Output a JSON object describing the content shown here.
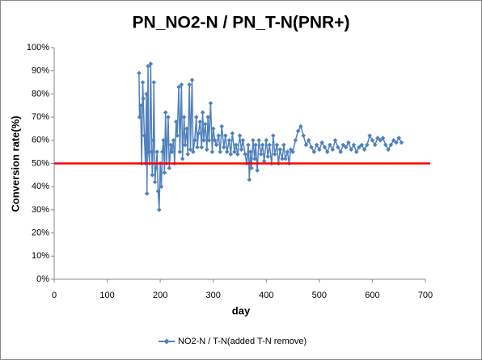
{
  "chart_data": {
    "type": "line",
    "title": "PN_NO2-N / PN_T-N(PNR+)",
    "x_label": "day",
    "y_label": "Conversion rate(%)",
    "xlim": [
      0,
      700
    ],
    "xticks": [
      0,
      100,
      200,
      300,
      400,
      500,
      600,
      700
    ],
    "ylim": [
      0,
      100
    ],
    "yticks": [
      {
        "value": 0,
        "label": "0%"
      },
      {
        "value": 10,
        "label": "10%"
      },
      {
        "value": 20,
        "label": "20%"
      },
      {
        "value": 30,
        "label": "30%"
      },
      {
        "value": 40,
        "label": "40%"
      },
      {
        "value": 50,
        "label": "50%"
      },
      {
        "value": 60,
        "label": "60%"
      },
      {
        "value": 70,
        "label": "70%"
      },
      {
        "value": 80,
        "label": "80%"
      },
      {
        "value": 90,
        "label": "90%"
      },
      {
        "value": 100,
        "label": "100%"
      }
    ],
    "grid": false,
    "legend": "bottom",
    "reference_line": {
      "value": 50,
      "color": "#ff0000"
    },
    "x": [
      160,
      161,
      163,
      165,
      167,
      168,
      170,
      172,
      174,
      175,
      177,
      178,
      180,
      182,
      184,
      185,
      187,
      188,
      190,
      192,
      194,
      196,
      198,
      200,
      202,
      204,
      206,
      208,
      210,
      212,
      215,
      217,
      220,
      222,
      225,
      227,
      230,
      232,
      235,
      237,
      240,
      242,
      245,
      247,
      250,
      252,
      255,
      257,
      260,
      262,
      265,
      268,
      270,
      272,
      275,
      278,
      280,
      282,
      285,
      288,
      290,
      292,
      295,
      298,
      300,
      303,
      306,
      310,
      313,
      316,
      320,
      323,
      326,
      330,
      333,
      336,
      340,
      343,
      346,
      350,
      353,
      356,
      360,
      363,
      366,
      368,
      370,
      372,
      375,
      378,
      380,
      383,
      386,
      390,
      393,
      396,
      400,
      403,
      406,
      410,
      413,
      416,
      420,
      423,
      426,
      430,
      433,
      436,
      440,
      443,
      446,
      450,
      455,
      460,
      465,
      470,
      475,
      480,
      485,
      490,
      495,
      500,
      505,
      510,
      515,
      520,
      525,
      530,
      535,
      540,
      545,
      550,
      555,
      560,
      565,
      570,
      575,
      580,
      585,
      590,
      595,
      600,
      605,
      610,
      615,
      620,
      625,
      630,
      635,
      640,
      645,
      650,
      655
    ],
    "series": [
      {
        "name": "NO2-N / T-N(added T-N remove)",
        "color": "#4f81bd",
        "values": [
          89,
          70,
          75,
          50,
          85,
          78,
          62,
          50,
          80,
          37,
          92,
          55,
          50,
          93,
          55,
          45,
          60,
          85,
          42,
          48,
          55,
          38,
          30,
          50,
          40,
          55,
          60,
          46,
          72,
          50,
          70,
          48,
          58,
          55,
          60,
          50,
          68,
          62,
          83,
          55,
          84,
          52,
          70,
          58,
          65,
          54,
          84,
          56,
          86,
          55,
          60,
          70,
          57,
          63,
          68,
          57,
          72,
          60,
          67,
          56,
          70,
          60,
          76,
          55,
          65,
          60,
          58,
          62,
          55,
          66,
          57,
          62,
          55,
          60,
          54,
          63,
          55,
          58,
          54,
          62,
          56,
          60,
          54,
          50,
          58,
          43,
          55,
          48,
          60,
          52,
          58,
          47,
          60,
          54,
          58,
          51,
          60,
          53,
          58,
          50,
          62,
          54,
          58,
          50,
          56,
          52,
          58,
          52,
          55,
          50,
          56,
          55,
          60,
          64,
          66,
          62,
          58,
          60,
          57,
          55,
          58,
          56,
          59,
          57,
          55,
          58,
          56,
          60,
          57,
          55,
          58,
          57,
          59,
          56,
          58,
          55,
          57,
          58,
          56,
          58,
          62,
          60,
          58,
          61,
          60,
          61,
          58,
          56,
          58,
          60,
          59,
          61,
          59
        ]
      }
    ]
  }
}
